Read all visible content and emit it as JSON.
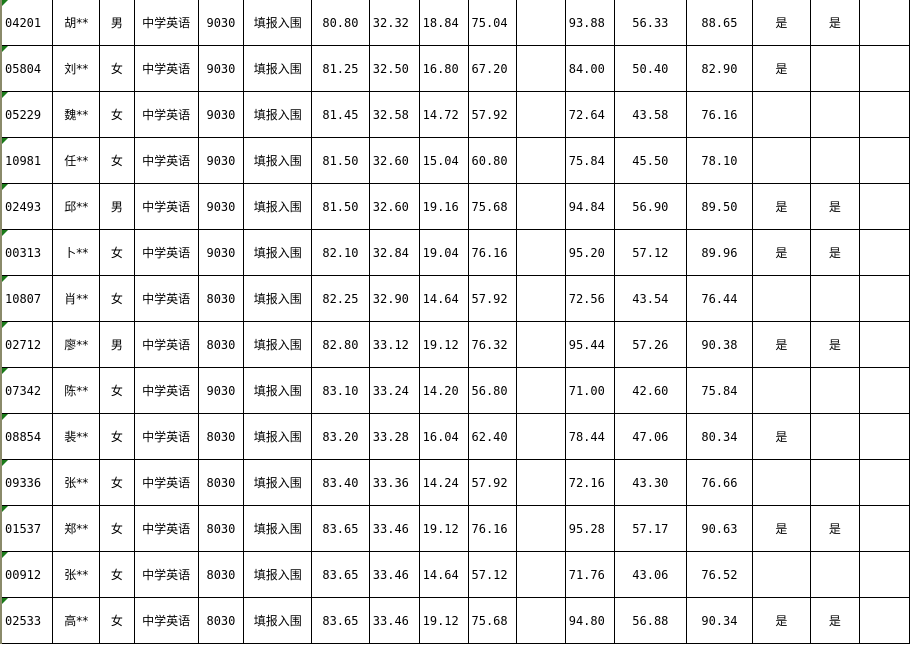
{
  "rows": [
    {
      "id": "04201",
      "name": "胡**",
      "gender": "男",
      "subject": "中学英语",
      "code": "9030",
      "status": "填报入围",
      "s1": "80.80",
      "s2": "32.32",
      "s3": "18.84",
      "s4": "75.04",
      "s5": "",
      "s6": "93.88",
      "s7": "56.33",
      "s8": "88.65",
      "f1": "是",
      "f2": "是",
      "f3": ""
    },
    {
      "id": "05804",
      "name": "刘**",
      "gender": "女",
      "subject": "中学英语",
      "code": "9030",
      "status": "填报入围",
      "s1": "81.25",
      "s2": "32.50",
      "s3": "16.80",
      "s4": "67.20",
      "s5": "",
      "s6": "84.00",
      "s7": "50.40",
      "s8": "82.90",
      "f1": "是",
      "f2": "",
      "f3": ""
    },
    {
      "id": "05229",
      "name": "魏**",
      "gender": "女",
      "subject": "中学英语",
      "code": "9030",
      "status": "填报入围",
      "s1": "81.45",
      "s2": "32.58",
      "s3": "14.72",
      "s4": "57.92",
      "s5": "",
      "s6": "72.64",
      "s7": "43.58",
      "s8": "76.16",
      "f1": "",
      "f2": "",
      "f3": ""
    },
    {
      "id": "10981",
      "name": "任**",
      "gender": "女",
      "subject": "中学英语",
      "code": "9030",
      "status": "填报入围",
      "s1": "81.50",
      "s2": "32.60",
      "s3": "15.04",
      "s4": "60.80",
      "s5": "",
      "s6": "75.84",
      "s7": "45.50",
      "s8": "78.10",
      "f1": "",
      "f2": "",
      "f3": ""
    },
    {
      "id": "02493",
      "name": "邱**",
      "gender": "男",
      "subject": "中学英语",
      "code": "9030",
      "status": "填报入围",
      "s1": "81.50",
      "s2": "32.60",
      "s3": "19.16",
      "s4": "75.68",
      "s5": "",
      "s6": "94.84",
      "s7": "56.90",
      "s8": "89.50",
      "f1": "是",
      "f2": "是",
      "f3": ""
    },
    {
      "id": "00313",
      "name": "卜**",
      "gender": "女",
      "subject": "中学英语",
      "code": "9030",
      "status": "填报入围",
      "s1": "82.10",
      "s2": "32.84",
      "s3": "19.04",
      "s4": "76.16",
      "s5": "",
      "s6": "95.20",
      "s7": "57.12",
      "s8": "89.96",
      "f1": "是",
      "f2": "是",
      "f3": ""
    },
    {
      "id": "10807",
      "name": "肖**",
      "gender": "女",
      "subject": "中学英语",
      "code": "8030",
      "status": "填报入围",
      "s1": "82.25",
      "s2": "32.90",
      "s3": "14.64",
      "s4": "57.92",
      "s5": "",
      "s6": "72.56",
      "s7": "43.54",
      "s8": "76.44",
      "f1": "",
      "f2": "",
      "f3": ""
    },
    {
      "id": "02712",
      "name": "廖**",
      "gender": "男",
      "subject": "中学英语",
      "code": "8030",
      "status": "填报入围",
      "s1": "82.80",
      "s2": "33.12",
      "s3": "19.12",
      "s4": "76.32",
      "s5": "",
      "s6": "95.44",
      "s7": "57.26",
      "s8": "90.38",
      "f1": "是",
      "f2": "是",
      "f3": ""
    },
    {
      "id": "07342",
      "name": "陈**",
      "gender": "女",
      "subject": "中学英语",
      "code": "9030",
      "status": "填报入围",
      "s1": "83.10",
      "s2": "33.24",
      "s3": "14.20",
      "s4": "56.80",
      "s5": "",
      "s6": "71.00",
      "s7": "42.60",
      "s8": "75.84",
      "f1": "",
      "f2": "",
      "f3": ""
    },
    {
      "id": "08854",
      "name": "裴**",
      "gender": "女",
      "subject": "中学英语",
      "code": "8030",
      "status": "填报入围",
      "s1": "83.20",
      "s2": "33.28",
      "s3": "16.04",
      "s4": "62.40",
      "s5": "",
      "s6": "78.44",
      "s7": "47.06",
      "s8": "80.34",
      "f1": "是",
      "f2": "",
      "f3": ""
    },
    {
      "id": "09336",
      "name": "张**",
      "gender": "女",
      "subject": "中学英语",
      "code": "8030",
      "status": "填报入围",
      "s1": "83.40",
      "s2": "33.36",
      "s3": "14.24",
      "s4": "57.92",
      "s5": "",
      "s6": "72.16",
      "s7": "43.30",
      "s8": "76.66",
      "f1": "",
      "f2": "",
      "f3": ""
    },
    {
      "id": "01537",
      "name": "郑**",
      "gender": "女",
      "subject": "中学英语",
      "code": "8030",
      "status": "填报入围",
      "s1": "83.65",
      "s2": "33.46",
      "s3": "19.12",
      "s4": "76.16",
      "s5": "",
      "s6": "95.28",
      "s7": "57.17",
      "s8": "90.63",
      "f1": "是",
      "f2": "是",
      "f3": ""
    },
    {
      "id": "00912",
      "name": "张**",
      "gender": "女",
      "subject": "中学英语",
      "code": "8030",
      "status": "填报入围",
      "s1": "83.65",
      "s2": "33.46",
      "s3": "14.64",
      "s4": "57.12",
      "s5": "",
      "s6": "71.76",
      "s7": "43.06",
      "s8": "76.52",
      "f1": "",
      "f2": "",
      "f3": ""
    },
    {
      "id": "02533",
      "name": "高**",
      "gender": "女",
      "subject": "中学英语",
      "code": "8030",
      "status": "填报入围",
      "s1": "83.65",
      "s2": "33.46",
      "s3": "19.12",
      "s4": "75.68",
      "s5": "",
      "s6": "94.80",
      "s7": "56.88",
      "s8": "90.34",
      "f1": "是",
      "f2": "是",
      "f3": ""
    }
  ],
  "colors": {
    "grid": "#000000",
    "cell_marker": "#1a7a1a"
  }
}
